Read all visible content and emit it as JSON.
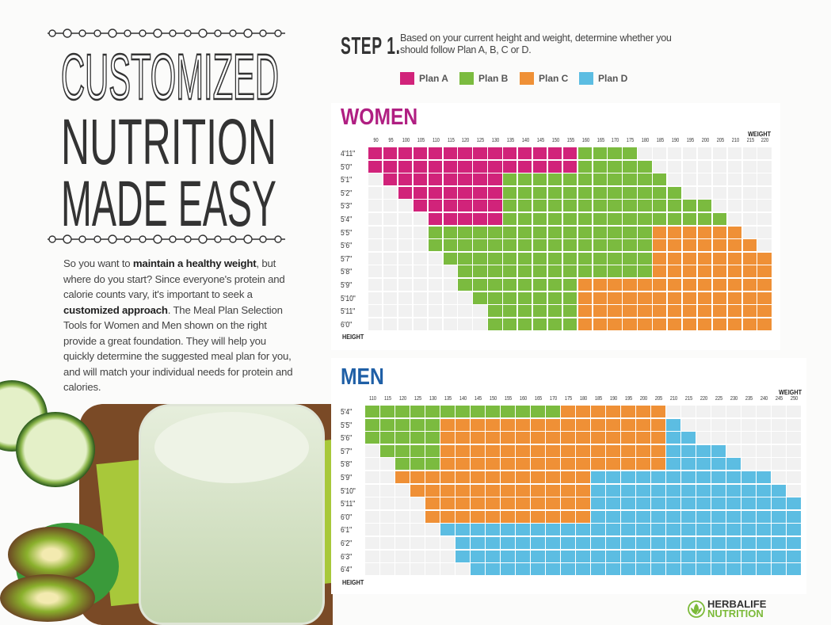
{
  "title": {
    "line1": "CUSTOMIZED",
    "line2": "NUTRITION",
    "line3": "MADE EASY"
  },
  "intro": {
    "p1": "So you want to ",
    "b1": "maintain a healthy weight",
    "p2": ", but where do you start? Since everyone's protein and calorie counts vary, it's important to seek a ",
    "b2": "customized approach",
    "p3": ". The Meal Plan Selection Tools for Women and Men shown on the right provide a great foundation. They will help you quickly determine the suggested meal plan for you, and will match your individual needs for protein and calories."
  },
  "step": {
    "label": "STEP 1.",
    "text": "Based on your current height and weight, determine whether you should follow Plan A, B, C or D."
  },
  "colors": {
    "A": "#d1237a",
    "B": "#7bbb3f",
    "C": "#ef9036",
    "D": "#5cbde2",
    "empty": "#f1f1f1",
    "women_title": "#b01f82",
    "men_title": "#1f5fa6"
  },
  "legend": [
    {
      "key": "A",
      "label": "Plan A"
    },
    {
      "key": "B",
      "label": "Plan B"
    },
    {
      "key": "C",
      "label": "Plan C"
    },
    {
      "key": "D",
      "label": "Plan D"
    }
  ],
  "women": {
    "title": "WOMEN",
    "weight_label": "WEIGHT",
    "height_label": "HEIGHT",
    "weights": [
      "90",
      "95",
      "100",
      "105",
      "110",
      "115",
      "120",
      "125",
      "130",
      "135",
      "140",
      "145",
      "150",
      "155",
      "160",
      "165",
      "170",
      "175",
      "180",
      "185",
      "190",
      "195",
      "200",
      "205",
      "210",
      "215",
      "220"
    ],
    "heights": [
      "4'11\"",
      "5'0\"",
      "5'1\"",
      "5'2\"",
      "5'3\"",
      "5'4\"",
      "5'5\"",
      "5'6\"",
      "5'7\"",
      "5'8\"",
      "5'9\"",
      "5'10\"",
      "5'11\"",
      "6'0\""
    ],
    "rows": [
      "AAAAAAAAAAAAAABBBB.........",
      "AAAAAAAAAAAAAABBBBB........",
      ".AAAAAAAABBBBBBBBBBB.......",
      "..AAAAAAABBBBBBBBBBBB......",
      "...AAAAAABBBBBBBBBBBBBB....",
      "....AAAAABBBBBBBBBBBBBBB...",
      "....BBBBBBBBBBBBBBBCCCCCC..",
      "....BBBBBBBBBBBBBBBCCCCCCC.",
      ".....BBBBBBBBBBBBBBCCCCCCCC",
      "......BBBBBBBBBBBBBCCCCCCCC",
      "......BBBBBBBBCCCCCCCCCCCCC",
      ".......BBBBBBBCCCCCCCCCCCCC",
      "........BBBBBBCCCCCCCCCCCCC",
      "........BBBBBBCCCCCCCCCCCCC"
    ]
  },
  "men": {
    "title": "MEN",
    "weight_label": "WEIGHT",
    "height_label": "HEIGHT",
    "weights": [
      "110",
      "115",
      "120",
      "125",
      "130",
      "135",
      "140",
      "145",
      "150",
      "155",
      "160",
      "165",
      "170",
      "175",
      "180",
      "185",
      "190",
      "195",
      "200",
      "205",
      "210",
      "215",
      "220",
      "225",
      "230",
      "235",
      "240",
      "245",
      "250"
    ],
    "heights": [
      "5'4\"",
      "5'5\"",
      "5'6\"",
      "5'7\"",
      "5'8\"",
      "5'9\"",
      "5'10\"",
      "5'11\"",
      "6'0\"",
      "6'1\"",
      "6'2\"",
      "6'3\"",
      "6'4\""
    ],
    "rows": [
      "BBBBBBBBBBBBBCCCCCCC.........",
      "BBBBBCCCCCCCCCCCCCCCD........",
      "BBBBBCCCCCCCCCCCCCCCDD.......",
      ".BBBBCCCCCCCCCCCCCCCDDDD.....",
      "..BBBCCCCCCCCCCCCCCCDDDDD....",
      "..CCCCCCCCCCCCCDDDDDDDDDDDD..",
      "...CCCCCCCCCCCCDDDDDDDDDDDDD.",
      "....CCCCCCCCCCCDDDDDDDDDDDDDD",
      "....CCCCCCCCCCCDDDDDDDDDDDDDD",
      ".....DDDDDDDDDDDDDDDDDDDDDDDD",
      "......DDDDDDDDDDDDDDDDDDDDDDD",
      "......DDDDDDDDDDDDDDDDDDDDDDD",
      ".......DDDDDDDDDDDDDDDDDDDDDD"
    ]
  },
  "logo": {
    "line1": "HERBALIFE",
    "line2": "NUTRITION"
  }
}
